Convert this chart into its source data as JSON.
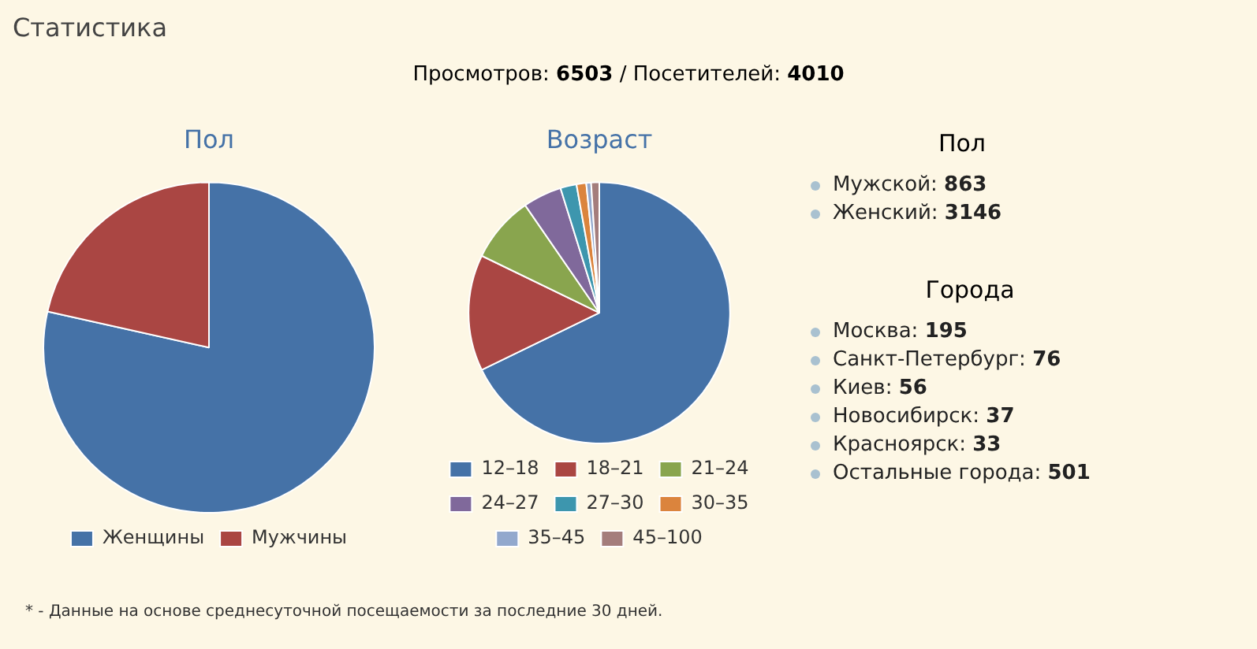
{
  "chart_data": [
    {
      "type": "other",
      "title": "Статистика",
      "subtitle": "Просмотров: 6503 / Посетителей: 4010",
      "annotations": [
        "* - Данные на основе среднесуточной посещаемости за последние 30 дней."
      ]
    },
    {
      "type": "pie",
      "title": "Пол",
      "categories": [
        "Женщины",
        "Мужчины"
      ],
      "values": [
        78.5,
        21.5
      ],
      "colors": [
        "#4572a7",
        "#aa4643"
      ],
      "legend": "bottom"
    },
    {
      "type": "pie",
      "title": "Возраст",
      "categories": [
        "12–18",
        "18–21",
        "21–24",
        "24–27",
        "27–30",
        "30–35",
        "35–45",
        "45–100"
      ],
      "values": [
        67.8,
        14.4,
        8.2,
        4.8,
        2.0,
        1.2,
        0.6,
        1.0
      ],
      "colors": [
        "#4572a7",
        "#aa4643",
        "#89a54e",
        "#80699b",
        "#3d96ae",
        "#db843d",
        "#92a8cd",
        "#a47d7c"
      ],
      "legend": "bottom"
    },
    {
      "type": "other",
      "title": "Пол",
      "annotations": [
        "Мужской: 863",
        "Женский: 3146"
      ]
    },
    {
      "type": "other",
      "title": "Города",
      "annotations": [
        "Москва: 195",
        "Санкт-Петербург: 76",
        "Киев: 56",
        "Новосибирск: 37",
        "Красноярск: 33",
        "Остальные города: 501"
      ]
    }
  ]
}
